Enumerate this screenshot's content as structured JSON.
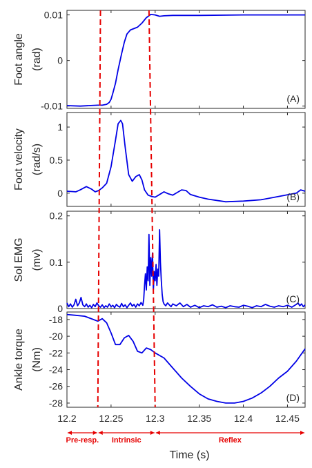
{
  "chart_data": [
    {
      "type": "line",
      "panel_label": "(A)",
      "ylabel_lines": [
        "Foot angle",
        "(rad)"
      ],
      "xlim": [
        12.2,
        12.47
      ],
      "ylim": [
        -0.0105,
        0.011
      ],
      "yticks": [
        -0.01,
        0,
        0.01
      ],
      "yticklabels": [
        "-0.01",
        "0",
        "0.01"
      ],
      "series": [
        {
          "x": [
            12.2,
            12.215,
            12.225,
            12.235,
            12.24,
            12.245,
            12.248,
            12.25,
            12.252,
            12.255,
            12.258,
            12.262,
            12.265,
            12.268,
            12.272,
            12.276,
            12.28,
            12.285,
            12.29,
            12.295,
            12.3,
            12.305,
            12.31,
            12.32,
            12.35,
            12.4,
            12.45,
            12.47
          ],
          "y": [
            -0.0099,
            -0.01,
            -0.0099,
            -0.0098,
            -0.0098,
            -0.0096,
            -0.0092,
            -0.0085,
            -0.0072,
            -0.005,
            -0.002,
            0.0015,
            0.004,
            0.0058,
            0.0067,
            0.007,
            0.0073,
            0.0082,
            0.0094,
            0.0101,
            0.01,
            0.0097,
            0.0098,
            0.0099,
            0.0099,
            0.01,
            0.01,
            0.01
          ]
        }
      ]
    },
    {
      "type": "line",
      "panel_label": "(B)",
      "ylabel_lines": [
        "Foot velocity",
        "(rad/s)"
      ],
      "xlim": [
        12.2,
        12.47
      ],
      "ylim": [
        -0.2,
        1.22
      ],
      "yticks": [
        0,
        0.5,
        1
      ],
      "yticklabels": [
        "0",
        "0.5",
        "1"
      ],
      "series": [
        {
          "x": [
            12.2,
            12.21,
            12.215,
            12.222,
            12.228,
            12.232,
            12.236,
            12.24,
            12.245,
            12.25,
            12.255,
            12.258,
            12.261,
            12.263,
            12.266,
            12.27,
            12.274,
            12.278,
            12.282,
            12.285,
            12.288,
            12.292,
            12.296,
            12.3,
            12.305,
            12.31,
            12.315,
            12.32,
            12.33,
            12.335,
            12.34,
            12.35,
            12.36,
            12.38,
            12.4,
            12.42,
            12.44,
            12.46,
            12.465,
            12.47
          ],
          "y": [
            0.03,
            0.02,
            0.05,
            0.1,
            0.06,
            0.02,
            0.04,
            0.08,
            0.15,
            0.4,
            0.8,
            1.05,
            1.1,
            1.05,
            0.7,
            0.28,
            0.18,
            0.25,
            0.28,
            0.2,
            0.05,
            -0.03,
            -0.05,
            -0.06,
            -0.02,
            0.02,
            -0.01,
            -0.03,
            0.05,
            0.04,
            -0.02,
            -0.06,
            -0.09,
            -0.13,
            -0.12,
            -0.1,
            -0.05,
            0.0,
            0.05,
            0.03
          ]
        }
      ]
    },
    {
      "type": "line",
      "panel_label": "(C)",
      "ylabel_lines": [
        "Sol EMG",
        "(mv)"
      ],
      "xlim": [
        12.2,
        12.47
      ],
      "ylim": [
        0,
        0.21
      ],
      "yticks": [
        0,
        0.1,
        0.2
      ],
      "yticklabels": [
        "0",
        "0.1",
        "0.2"
      ],
      "series": [
        {
          "x": [
            12.2,
            12.202,
            12.204,
            12.206,
            12.208,
            12.21,
            12.212,
            12.214,
            12.216,
            12.218,
            12.22,
            12.222,
            12.224,
            12.226,
            12.228,
            12.23,
            12.232,
            12.234,
            12.236,
            12.238,
            12.24,
            12.242,
            12.244,
            12.246,
            12.248,
            12.25,
            12.252,
            12.254,
            12.256,
            12.258,
            12.26,
            12.262,
            12.264,
            12.266,
            12.268,
            12.27,
            12.272,
            12.274,
            12.276,
            12.278,
            12.28,
            12.282,
            12.284,
            12.286,
            12.287,
            12.288,
            12.289,
            12.29,
            12.291,
            12.292,
            12.293,
            12.294,
            12.295,
            12.296,
            12.297,
            12.298,
            12.299,
            12.3,
            12.301,
            12.302,
            12.303,
            12.304,
            12.305,
            12.306,
            12.307,
            12.308,
            12.309,
            12.31,
            12.312,
            12.314,
            12.316,
            12.318,
            12.32,
            12.324,
            12.328,
            12.332,
            12.336,
            12.34,
            12.345,
            12.35,
            12.355,
            12.36,
            12.365,
            12.37,
            12.375,
            12.38,
            12.385,
            12.39,
            12.395,
            12.4,
            12.405,
            12.41,
            12.415,
            12.42,
            12.425,
            12.43,
            12.435,
            12.44,
            12.445,
            12.45,
            12.455,
            12.46,
            12.462,
            12.464,
            12.466,
            12.468,
            12.47
          ],
          "y": [
            0.012,
            0.004,
            0.01,
            0.003,
            0.008,
            0.02,
            0.006,
            0.012,
            0.024,
            0.008,
            0.004,
            0.01,
            0.003,
            0.007,
            0.002,
            0.009,
            0.004,
            0.012,
            0.006,
            0.003,
            0.008,
            0.002,
            0.006,
            0.003,
            0.01,
            0.004,
            0.007,
            0.002,
            0.009,
            0.005,
            0.003,
            0.011,
            0.004,
            0.008,
            0.002,
            0.007,
            0.012,
            0.005,
            0.009,
            0.003,
            0.01,
            0.006,
            0.013,
            0.007,
            0.02,
            0.05,
            0.075,
            0.04,
            0.09,
            0.06,
            0.16,
            0.05,
            0.11,
            0.07,
            0.12,
            0.04,
            0.08,
            0.06,
            0.095,
            0.05,
            0.085,
            0.07,
            0.17,
            0.1,
            0.06,
            0.03,
            0.015,
            0.01,
            0.006,
            0.012,
            0.008,
            0.004,
            0.01,
            0.006,
            0.012,
            0.004,
            0.009,
            0.003,
            0.007,
            0.002,
            0.006,
            0.004,
            0.008,
            0.003,
            0.005,
            0.002,
            0.006,
            0.004,
            0.003,
            0.007,
            0.005,
            0.002,
            0.006,
            0.004,
            0.009,
            0.005,
            0.003,
            0.006,
            0.004,
            0.007,
            0.003,
            0.009,
            0.012,
            0.006,
            0.01,
            0.004,
            0.008
          ]
        }
      ]
    },
    {
      "type": "line",
      "panel_label": "(D)",
      "ylabel_lines": [
        "Ankle torque",
        "(Nm)"
      ],
      "xlim": [
        12.2,
        12.47
      ],
      "ylim": [
        -28.5,
        -17.1
      ],
      "yticks": [
        -28,
        -26,
        -24,
        -22,
        -20,
        -18
      ],
      "yticklabels": [
        "-28",
        "-26",
        "-24",
        "-22",
        "-20",
        "-18"
      ],
      "series": [
        {
          "x": [
            12.2,
            12.21,
            12.22,
            12.23,
            12.235,
            12.24,
            12.245,
            12.25,
            12.255,
            12.26,
            12.265,
            12.27,
            12.275,
            12.28,
            12.285,
            12.29,
            12.295,
            12.3,
            12.31,
            12.32,
            12.33,
            12.34,
            12.35,
            12.36,
            12.37,
            12.38,
            12.39,
            12.4,
            12.41,
            12.42,
            12.43,
            12.44,
            12.45,
            12.46,
            12.47
          ],
          "y": [
            -17.4,
            -17.5,
            -17.6,
            -18.0,
            -18.2,
            -17.9,
            -18.4,
            -19.6,
            -21.0,
            -21.0,
            -20.2,
            -19.9,
            -20.6,
            -21.8,
            -22.0,
            -21.4,
            -21.6,
            -22.0,
            -22.6,
            -23.8,
            -25.0,
            -26.0,
            -26.9,
            -27.5,
            -27.8,
            -28.0,
            -28.0,
            -27.8,
            -27.4,
            -26.8,
            -26.0,
            -25.0,
            -24.2,
            -23.0,
            -21.5
          ]
        }
      ]
    }
  ],
  "shared": {
    "xticks": [
      12.2,
      12.25,
      12.3,
      12.35,
      12.4,
      12.45
    ],
    "xticklabels": [
      "12.2",
      "12.25",
      "12.3",
      "12.35",
      "12.4",
      "12.45"
    ],
    "xlabel": "Time (s)",
    "series_color": "#0000e6",
    "marker_color": "#e60000",
    "dashed_lines": [
      {
        "x_top": 12.238,
        "x_bottom": 12.235
      },
      {
        "x_top": 12.293,
        "x_bottom": 12.3
      }
    ],
    "phases": [
      {
        "label": "Pre-resp.",
        "x_start": 12.2,
        "x_end": 12.235
      },
      {
        "label": "Intrinsic",
        "x_start": 12.235,
        "x_end": 12.3
      },
      {
        "label": "Reflex",
        "x_start": 12.3,
        "x_end": 12.47
      }
    ]
  }
}
